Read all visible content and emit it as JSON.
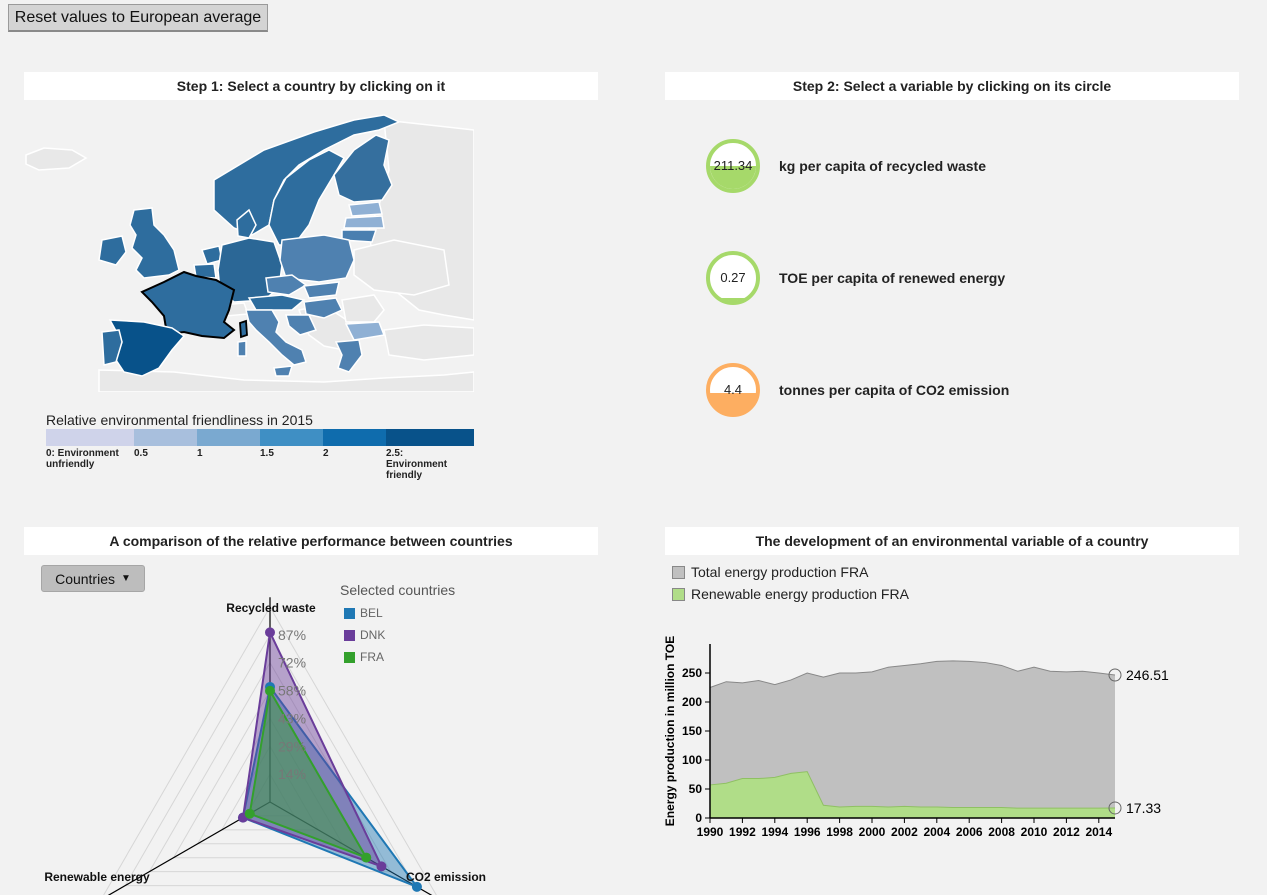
{
  "reset_button": "Reset values to European average",
  "panels": {
    "step1": "Step 1: Select a country by clicking on it",
    "step2": "Step 2: Select a variable by clicking on its circle",
    "comparison": "A comparison of the relative performance between countries",
    "development": "The development of an environmental variable of a country"
  },
  "map_legend": {
    "title": "Relative environmental friendliness in 2015",
    "colors": [
      "#cfd3ea",
      "#a8bfdd",
      "#7aa9d0",
      "#3f8fc4",
      "#0f6cad",
      "#08528a"
    ],
    "ticks": [
      "0: Environment unfriendly",
      "0.5",
      "1",
      "1.5",
      "2",
      "2.5: Environment friendly"
    ]
  },
  "variables": [
    {
      "value": "211.34",
      "label": "kg per capita of recycled waste",
      "color": "#a6d96a"
    },
    {
      "value": "0.27",
      "label": "TOE per capita of renewed energy",
      "color": "#a6d96a"
    },
    {
      "value": "4.4",
      "label": "tonnes per capita of CO2 emission",
      "color": "#fdae61"
    }
  ],
  "comparison": {
    "dropdown": "Countries",
    "selected_title": "Selected countries",
    "selected": [
      {
        "code": "BEL",
        "color": "#1f78b4"
      },
      {
        "code": "DNK",
        "color": "#6a3d9a"
      },
      {
        "code": "FRA",
        "color": "#33a02c"
      }
    ],
    "axis_labels": [
      "Recycled waste",
      "Renewable energy",
      "CO2 emission"
    ],
    "ring_labels": [
      "14%",
      "29%",
      "43%",
      "58%",
      "72%",
      "87%"
    ]
  },
  "development": {
    "legend": [
      {
        "label": "Total energy production FRA",
        "color": "#c0c0c0"
      },
      {
        "label": "Renewable energy production FRA",
        "color": "#b0dd88"
      }
    ],
    "end_labels": {
      "total": "246.51",
      "renewable": "17.33"
    }
  },
  "chart_data": [
    {
      "type": "radar",
      "axes": [
        "Recycled waste",
        "CO2 emission",
        "Renewable energy"
      ],
      "rmax": 1.0,
      "ring_labels": [
        "14%",
        "29%",
        "43%",
        "58%",
        "72%",
        "87%"
      ],
      "series": [
        {
          "name": "BEL",
          "values": [
            0.59,
            0.87,
            0.16
          ]
        },
        {
          "name": "DNK",
          "values": [
            0.87,
            0.66,
            0.16
          ]
        },
        {
          "name": "FRA",
          "values": [
            0.57,
            0.57,
            0.12
          ]
        }
      ]
    },
    {
      "type": "area",
      "xlabel": "",
      "ylabel": "Energy production in million TOE",
      "xlim": [
        1990,
        2015
      ],
      "ylim": [
        0,
        300
      ],
      "x_ticks": [
        1990,
        1992,
        1994,
        1996,
        1998,
        2000,
        2002,
        2004,
        2006,
        2008,
        2010,
        2012,
        2014
      ],
      "y_ticks": [
        0,
        50,
        100,
        150,
        200,
        250
      ],
      "x": [
        1990,
        1991,
        1992,
        1993,
        1994,
        1995,
        1996,
        1997,
        1998,
        1999,
        2000,
        2001,
        2002,
        2003,
        2004,
        2005,
        2006,
        2007,
        2008,
        2009,
        2010,
        2011,
        2012,
        2013,
        2014,
        2015
      ],
      "series": [
        {
          "name": "Total energy production FRA",
          "values": [
            225,
            235,
            233,
            237,
            230,
            238,
            250,
            243,
            250,
            250,
            252,
            260,
            263,
            266,
            270,
            271,
            270,
            268,
            263,
            253,
            260,
            253,
            252,
            253,
            250,
            246.51
          ]
        },
        {
          "name": "Renewable energy production FRA",
          "values": [
            57,
            60,
            68,
            68,
            70,
            77,
            80,
            22,
            19,
            20,
            20,
            19,
            20,
            19,
            19,
            18,
            18,
            18,
            18,
            17,
            17,
            17,
            17,
            17,
            17,
            17.33
          ]
        }
      ]
    }
  ]
}
